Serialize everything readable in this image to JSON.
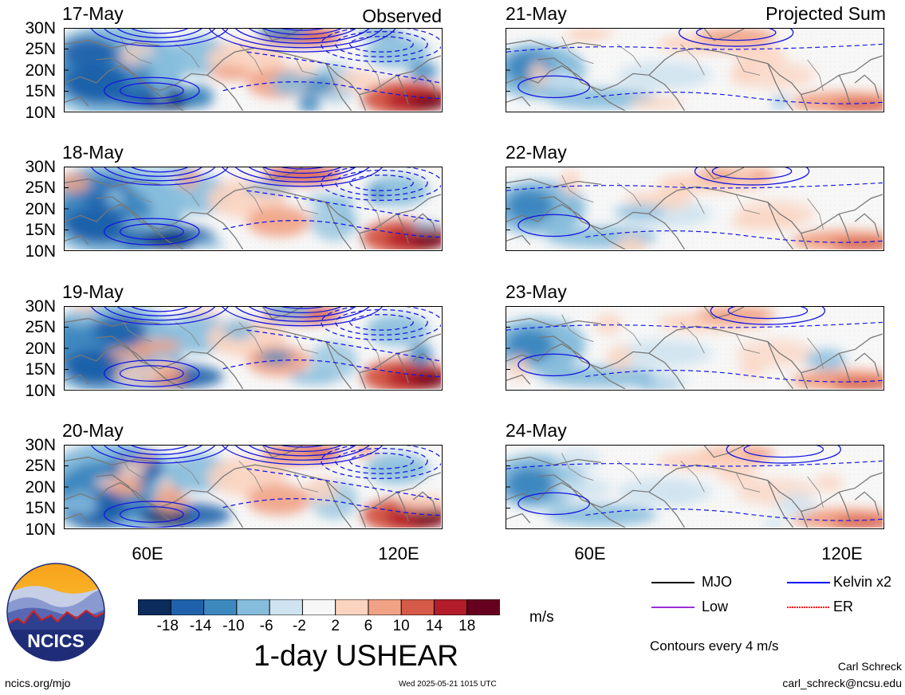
{
  "header": {
    "observed": "Observed",
    "projected": "Projected Sum"
  },
  "panels_left": [
    {
      "date": "17-May"
    },
    {
      "date": "18-May"
    },
    {
      "date": "19-May"
    },
    {
      "date": "20-May"
    }
  ],
  "panels_right": [
    {
      "date": "21-May"
    },
    {
      "date": "22-May"
    },
    {
      "date": "23-May"
    },
    {
      "date": "24-May"
    }
  ],
  "lat_ticks": [
    "30N",
    "25N",
    "20N",
    "15N",
    "10N"
  ],
  "lon_ticks": [
    "60E",
    "120E"
  ],
  "chart_data": {
    "type": "heatmap",
    "title": "1-day USHEAR",
    "units": "m/s",
    "x_range": [
      40,
      130
    ],
    "y_range": [
      10,
      30
    ],
    "x_ticks": [
      "60E",
      "120E"
    ],
    "y_ticks": [
      "30N",
      "25N",
      "20N",
      "15N",
      "10N"
    ],
    "colorbar": {
      "labels": [
        "-18",
        "-14",
        "-10",
        "-6",
        "-2",
        "2",
        "6",
        "10",
        "14",
        "18"
      ],
      "colors": [
        "#0b2c5c",
        "#1f62ab",
        "#3e88c0",
        "#86bcdc",
        "#cfe3f0",
        "#f7f7f7",
        "#fbd3bf",
        "#f1a285",
        "#d55a48",
        "#b31d2b",
        "#67001f"
      ]
    },
    "legend": [
      {
        "label": "MJO",
        "color": "#000000"
      },
      {
        "label": "Kelvin x2",
        "color": "#0000ff"
      },
      {
        "label": "Low",
        "color": "#9b30d9"
      },
      {
        "label": "ER",
        "color": "#ff0000"
      }
    ],
    "contour_note": "Contours every 4 m/s"
  },
  "colors": {
    "land": "#808080",
    "kelvin": "#1515e0"
  },
  "footer": {
    "site": "ncics.org/mjo",
    "timestamp": "Wed 2025-05-21 1015 UTC",
    "author": "Carl Schreck",
    "email": "carl_schreck@ncsu.edu"
  },
  "logo": {
    "text": "NCICS"
  }
}
